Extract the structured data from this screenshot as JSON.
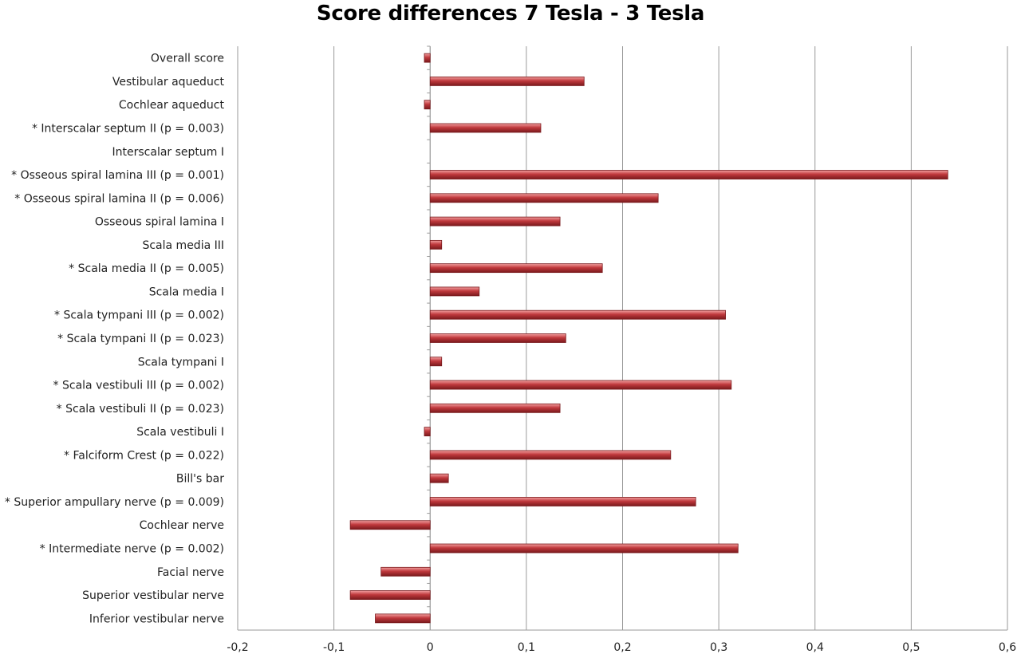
{
  "chart_data": {
    "type": "bar",
    "orientation": "horizontal",
    "title": "Score differences 7 Tesla - 3 Tesla",
    "xlabel": "",
    "ylabel": "",
    "xlim": [
      -0.2,
      0.6
    ],
    "xticks": [
      -0.2,
      -0.1,
      0,
      0.1,
      0.2,
      0.3,
      0.4,
      0.5,
      0.6
    ],
    "xtick_labels": [
      "-0,2",
      "-0,1",
      "0",
      "0,1",
      "0,2",
      "0,3",
      "0,4",
      "0,5",
      "0,6"
    ],
    "grid": "vertical",
    "legend": "none",
    "bar_color": "#c0393d",
    "bar_highlight": "#f2a0a0",
    "bar_edge": "#7a1a1d",
    "categories": [
      "Overall score",
      "Vestibular aqueduct",
      "Cochlear aqueduct",
      "* Interscalar septum II (p = 0.003)",
      "Interscalar septum I",
      "* Osseous spiral lamina III (p = 0.001)",
      "* Osseous spiral lamina II (p = 0.006)",
      "Osseous spiral lamina I",
      "Scala media III",
      "* Scala media II (p = 0.005)",
      "Scala media I",
      "* Scala tympani III (p = 0.002)",
      "* Scala tympani II (p = 0.023)",
      "Scala tympani I",
      "* Scala vestibuli III (p = 0.002)",
      "* Scala vestibuli II (p = 0.023)",
      "Scala vestibuli I",
      "* Falciform Crest (p = 0.022)",
      "Bill's bar",
      "* Superior ampullary nerve (p = 0.009)",
      "Cochlear nerve",
      "* Intermediate nerve (p = 0.002)",
      "Facial nerve",
      "Superior vestibular nerve",
      "Inferior vestibular nerve"
    ],
    "values": [
      -0.006,
      0.16,
      -0.006,
      0.115,
      0,
      0.538,
      0.237,
      0.135,
      0.012,
      0.179,
      0.051,
      0.307,
      0.141,
      0.012,
      0.313,
      0.135,
      -0.006,
      0.25,
      0.019,
      0.276,
      -0.083,
      0.32,
      -0.051,
      -0.083,
      -0.057
    ]
  }
}
